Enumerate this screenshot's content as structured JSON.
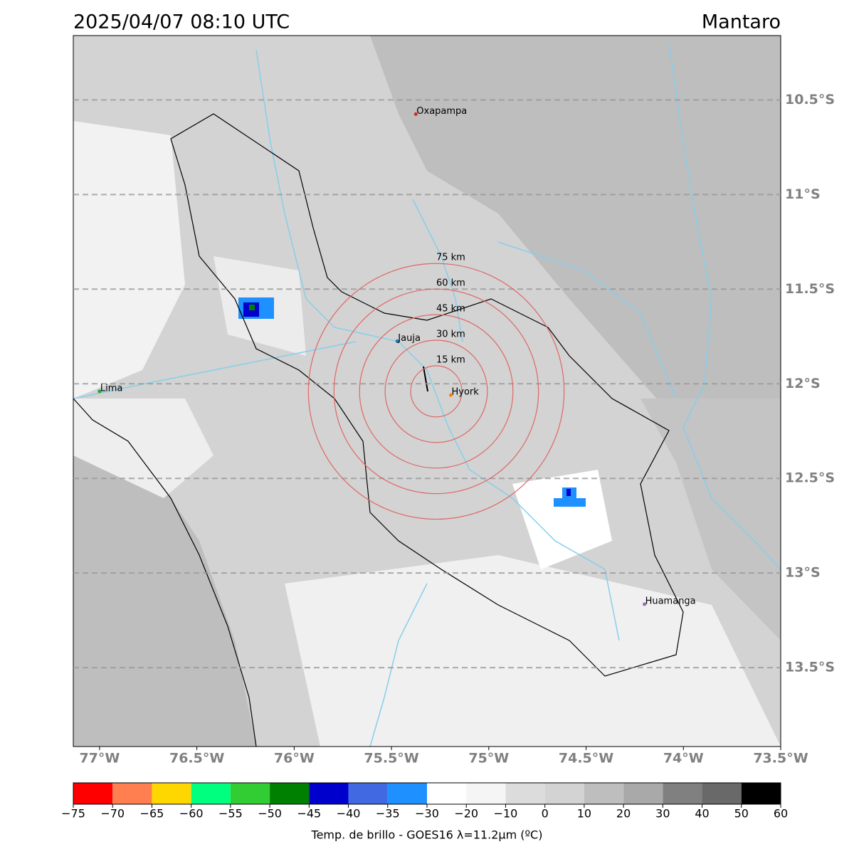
{
  "header": {
    "title": "2025/04/07 08:10 UTC",
    "region": "Mantaro"
  },
  "map": {
    "lonlim": [
      -77.135,
      -73.5
    ],
    "latlim": [
      -13.917,
      -10.16
    ],
    "lonticks": [
      {
        "value": -77,
        "label": "77°W"
      },
      {
        "value": -76.5,
        "label": "76.5°W"
      },
      {
        "value": -76,
        "label": "76°W"
      },
      {
        "value": -75.5,
        "label": "75.5°W"
      },
      {
        "value": -75,
        "label": "75°W"
      },
      {
        "value": -74.5,
        "label": "74.5°W"
      },
      {
        "value": -74,
        "label": "74°W"
      },
      {
        "value": -73.5,
        "label": "73.5°W"
      }
    ],
    "latticks": [
      {
        "value": -10.5,
        "label": "10.5°S"
      },
      {
        "value": -11,
        "label": "11°S"
      },
      {
        "value": -11.5,
        "label": "11.5°S"
      },
      {
        "value": -12,
        "label": "12°S"
      },
      {
        "value": -12.5,
        "label": "12.5°S"
      },
      {
        "value": -13,
        "label": "13°S"
      },
      {
        "value": -13.5,
        "label": "13.5°S"
      }
    ],
    "grid": true,
    "cities": [
      {
        "name": "Oxapampa",
        "lon": -75.375,
        "lat": -10.575,
        "color": "#d62728"
      },
      {
        "name": "Jauja",
        "lon": -75.47,
        "lat": -11.775,
        "color": "#1f77b4"
      },
      {
        "name": "Lima",
        "lon": -77.0,
        "lat": -12.04,
        "color": "#2ca02c"
      },
      {
        "name": "Hyork",
        "lon": -75.195,
        "lat": -12.06,
        "color": "#ff7f0e"
      },
      {
        "name": "Huamanga",
        "lon": -74.2,
        "lat": -13.165,
        "color": "#9467bd"
      }
    ],
    "rings": {
      "center_lon": -75.27,
      "center_lat": -12.04,
      "color": "#e06666",
      "radii": [
        {
          "value": 15,
          "label": "15 km"
        },
        {
          "value": 30,
          "label": "30 km"
        },
        {
          "value": 45,
          "label": "45 km"
        },
        {
          "value": 60,
          "label": "60 km"
        },
        {
          "value": 75,
          "label": "75 km"
        }
      ]
    }
  },
  "colorbar": {
    "label": "Temp. de brillo - GOES16 λ=11.2μm (ºC)",
    "bounds": [
      -75,
      -70,
      -65,
      -60,
      -55,
      -50,
      -45,
      -40,
      -35,
      -30,
      -20,
      -10,
      0,
      10,
      20,
      30,
      40,
      50,
      60
    ],
    "colors": [
      "#ff0000",
      "#ff7f50",
      "#ffd700",
      "#00ff7f",
      "#32cd32",
      "#008000",
      "#0000cd",
      "#4169e1",
      "#1e90ff",
      "#ffffff",
      "#f5f5f5",
      "#dcdcdc",
      "#d3d3d3",
      "#bebebe",
      "#a9a9a9",
      "#808080",
      "#696969",
      "#000000"
    ],
    "ticks": [
      {
        "value": -75,
        "label": "−75"
      },
      {
        "value": -70,
        "label": "−70"
      },
      {
        "value": -65,
        "label": "−65"
      },
      {
        "value": -60,
        "label": "−60"
      },
      {
        "value": -55,
        "label": "−55"
      },
      {
        "value": -50,
        "label": "−50"
      },
      {
        "value": -45,
        "label": "−45"
      },
      {
        "value": -40,
        "label": "−40"
      },
      {
        "value": -35,
        "label": "−35"
      },
      {
        "value": -30,
        "label": "−30"
      },
      {
        "value": -20,
        "label": "−20"
      },
      {
        "value": -10,
        "label": "−10"
      },
      0,
      10,
      20,
      30,
      40,
      50,
      60
    ]
  }
}
